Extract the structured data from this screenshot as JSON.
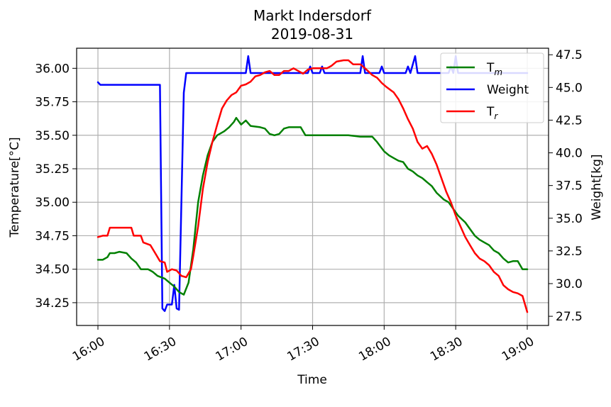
{
  "chart_data": {
    "type": "line",
    "title": "Markt Indersdorf",
    "subtitle": "2019-08-31",
    "xlabel": "Time",
    "ylabel_left": "Temperature[°C]",
    "ylabel_right": "Weight[kg]",
    "x_range": [
      "16:00",
      "19:00"
    ],
    "x_ticks": [
      "16:00",
      "16:30",
      "17:00",
      "17:30",
      "18:00",
      "18:30",
      "19:00"
    ],
    "y_left_range": [
      34.08,
      36.15
    ],
    "y_left_ticks": [
      "34.25",
      "34.50",
      "34.75",
      "35.00",
      "35.25",
      "35.50",
      "35.75",
      "36.00"
    ],
    "y_right_range": [
      26.8,
      48.0
    ],
    "y_right_ticks": [
      "27.5",
      "30.0",
      "32.5",
      "35.0",
      "37.5",
      "40.0",
      "42.5",
      "45.0",
      "47.5"
    ],
    "grid": true,
    "legend_position": "top-right",
    "series": [
      {
        "name": "T",
        "name_sub": "m",
        "axis": "left",
        "color": "#008000",
        "points": [
          [
            "16:00",
            34.57
          ],
          [
            "16:02",
            34.57
          ],
          [
            "16:04",
            34.59
          ],
          [
            "16:05",
            34.62
          ],
          [
            "16:07",
            34.62
          ],
          [
            "16:09",
            34.63
          ],
          [
            "16:12",
            34.62
          ],
          [
            "16:14",
            34.58
          ],
          [
            "16:16",
            34.55
          ],
          [
            "16:18",
            34.5
          ],
          [
            "16:21",
            34.5
          ],
          [
            "16:23",
            34.48
          ],
          [
            "16:25",
            34.45
          ],
          [
            "16:28",
            34.43
          ],
          [
            "16:30",
            34.4
          ],
          [
            "16:32",
            34.37
          ],
          [
            "16:34",
            34.33
          ],
          [
            "16:36",
            34.31
          ],
          [
            "16:38",
            34.4
          ],
          [
            "16:40",
            34.65
          ],
          [
            "16:42",
            35.0
          ],
          [
            "16:44",
            35.2
          ],
          [
            "16:46",
            35.35
          ],
          [
            "16:48",
            35.45
          ],
          [
            "16:50",
            35.5
          ],
          [
            "16:53",
            35.53
          ],
          [
            "16:55",
            35.56
          ],
          [
            "16:57",
            35.6
          ],
          [
            "16:58",
            35.63
          ],
          [
            "17:00",
            35.58
          ],
          [
            "17:02",
            35.61
          ],
          [
            "17:04",
            35.57
          ],
          [
            "17:08",
            35.56
          ],
          [
            "17:10",
            35.55
          ],
          [
            "17:12",
            35.51
          ],
          [
            "17:14",
            35.5
          ],
          [
            "17:16",
            35.51
          ],
          [
            "17:18",
            35.55
          ],
          [
            "17:20",
            35.56
          ],
          [
            "17:25",
            35.56
          ],
          [
            "17:27",
            35.5
          ],
          [
            "17:30",
            35.5
          ],
          [
            "17:40",
            35.5
          ],
          [
            "17:45",
            35.5
          ],
          [
            "17:50",
            35.49
          ],
          [
            "17:55",
            35.49
          ],
          [
            "17:57",
            35.45
          ],
          [
            "18:00",
            35.38
          ],
          [
            "18:02",
            35.35
          ],
          [
            "18:04",
            35.33
          ],
          [
            "18:06",
            35.31
          ],
          [
            "18:08",
            35.3
          ],
          [
            "18:10",
            35.25
          ],
          [
            "18:12",
            35.23
          ],
          [
            "18:14",
            35.2
          ],
          [
            "18:16",
            35.18
          ],
          [
            "18:18",
            35.15
          ],
          [
            "18:20",
            35.12
          ],
          [
            "18:22",
            35.07
          ],
          [
            "18:25",
            35.02
          ],
          [
            "18:27",
            35.0
          ],
          [
            "18:29",
            34.95
          ],
          [
            "18:31",
            34.9
          ],
          [
            "18:34",
            34.85
          ],
          [
            "18:36",
            34.8
          ],
          [
            "18:38",
            34.75
          ],
          [
            "18:40",
            34.72
          ],
          [
            "18:42",
            34.7
          ],
          [
            "18:44",
            34.68
          ],
          [
            "18:46",
            34.64
          ],
          [
            "18:48",
            34.62
          ],
          [
            "18:50",
            34.58
          ],
          [
            "18:52",
            34.55
          ],
          [
            "18:54",
            34.56
          ],
          [
            "18:56",
            34.56
          ],
          [
            "18:58",
            34.5
          ],
          [
            "19:00",
            34.5
          ]
        ]
      },
      {
        "name": "Weight",
        "axis": "right",
        "color": "#0000ff",
        "points": [
          [
            "16:00",
            45.4
          ],
          [
            "16:01",
            45.2
          ],
          [
            "16:10",
            45.2
          ],
          [
            "16:20",
            45.2
          ],
          [
            "16:26",
            45.2
          ],
          [
            "16:27",
            28.1
          ],
          [
            "16:28",
            27.9
          ],
          [
            "16:29",
            28.4
          ],
          [
            "16:31",
            28.4
          ],
          [
            "16:32",
            29.9
          ],
          [
            "16:33",
            28.1
          ],
          [
            "16:34",
            28.0
          ],
          [
            "16:36",
            44.6
          ],
          [
            "16:37",
            46.1
          ],
          [
            "16:40",
            46.1
          ],
          [
            "16:50",
            46.1
          ],
          [
            "17:00",
            46.1
          ],
          [
            "17:02",
            46.1
          ],
          [
            "17:03",
            47.4
          ],
          [
            "17:04",
            46.1
          ],
          [
            "17:10",
            46.1
          ],
          [
            "17:15",
            46.1
          ],
          [
            "17:20",
            46.1
          ],
          [
            "17:28",
            46.1
          ],
          [
            "17:29",
            46.6
          ],
          [
            "17:30",
            46.1
          ],
          [
            "17:33",
            46.1
          ],
          [
            "17:34",
            46.6
          ],
          [
            "17:35",
            46.1
          ],
          [
            "17:45",
            46.1
          ],
          [
            "17:50",
            46.1
          ],
          [
            "17:51",
            47.4
          ],
          [
            "17:52",
            46.1
          ],
          [
            "17:58",
            46.1
          ],
          [
            "17:59",
            46.6
          ],
          [
            "18:00",
            46.1
          ],
          [
            "18:09",
            46.1
          ],
          [
            "18:10",
            46.6
          ],
          [
            "18:11",
            46.1
          ],
          [
            "18:13",
            47.4
          ],
          [
            "18:14",
            46.1
          ],
          [
            "18:20",
            46.1
          ],
          [
            "18:27",
            46.1
          ],
          [
            "18:28",
            46.6
          ],
          [
            "18:29",
            46.1
          ],
          [
            "18:30",
            47.4
          ],
          [
            "18:31",
            46.1
          ],
          [
            "19:00",
            46.1
          ]
        ]
      },
      {
        "name": "T",
        "name_sub": "r",
        "axis": "left",
        "color": "#ff0000",
        "points": [
          [
            "16:00",
            34.74
          ],
          [
            "16:02",
            34.75
          ],
          [
            "16:04",
            34.75
          ],
          [
            "16:05",
            34.81
          ],
          [
            "16:10",
            34.81
          ],
          [
            "16:14",
            34.81
          ],
          [
            "16:15",
            34.75
          ],
          [
            "16:18",
            34.75
          ],
          [
            "16:19",
            34.7
          ],
          [
            "16:22",
            34.68
          ],
          [
            "16:24",
            34.62
          ],
          [
            "16:26",
            34.56
          ],
          [
            "16:28",
            34.55
          ],
          [
            "16:29",
            34.48
          ],
          [
            "16:31",
            34.5
          ],
          [
            "16:33",
            34.49
          ],
          [
            "16:35",
            34.45
          ],
          [
            "16:37",
            34.44
          ],
          [
            "16:39",
            34.5
          ],
          [
            "16:40",
            34.6
          ],
          [
            "16:42",
            34.82
          ],
          [
            "16:44",
            35.1
          ],
          [
            "16:46",
            35.3
          ],
          [
            "16:48",
            35.45
          ],
          [
            "16:50",
            35.58
          ],
          [
            "16:52",
            35.7
          ],
          [
            "16:54",
            35.76
          ],
          [
            "16:56",
            35.8
          ],
          [
            "16:58",
            35.82
          ],
          [
            "17:00",
            35.87
          ],
          [
            "17:02",
            35.88
          ],
          [
            "17:04",
            35.9
          ],
          [
            "17:06",
            35.94
          ],
          [
            "17:08",
            35.95
          ],
          [
            "17:10",
            35.97
          ],
          [
            "17:12",
            35.98
          ],
          [
            "17:14",
            35.95
          ],
          [
            "17:16",
            35.95
          ],
          [
            "17:18",
            35.98
          ],
          [
            "17:20",
            35.98
          ],
          [
            "17:22",
            36.0
          ],
          [
            "17:24",
            35.98
          ],
          [
            "17:26",
            35.96
          ],
          [
            "17:28",
            35.99
          ],
          [
            "17:30",
            36.0
          ],
          [
            "17:33",
            36.0
          ],
          [
            "17:36",
            36.0
          ],
          [
            "17:38",
            36.02
          ],
          [
            "17:40",
            36.05
          ],
          [
            "17:43",
            36.06
          ],
          [
            "17:45",
            36.06
          ],
          [
            "17:47",
            36.03
          ],
          [
            "17:50",
            36.03
          ],
          [
            "17:52",
            36.0
          ],
          [
            "17:55",
            35.95
          ],
          [
            "17:57",
            35.93
          ],
          [
            "17:59",
            35.89
          ],
          [
            "18:01",
            35.86
          ],
          [
            "18:04",
            35.82
          ],
          [
            "18:06",
            35.77
          ],
          [
            "18:08",
            35.7
          ],
          [
            "18:10",
            35.62
          ],
          [
            "18:12",
            35.55
          ],
          [
            "18:14",
            35.45
          ],
          [
            "18:16",
            35.4
          ],
          [
            "18:18",
            35.42
          ],
          [
            "18:20",
            35.36
          ],
          [
            "18:22",
            35.28
          ],
          [
            "18:24",
            35.18
          ],
          [
            "18:26",
            35.08
          ],
          [
            "18:28",
            35.0
          ],
          [
            "18:30",
            34.9
          ],
          [
            "18:32",
            34.82
          ],
          [
            "18:34",
            34.74
          ],
          [
            "18:36",
            34.68
          ],
          [
            "18:38",
            34.62
          ],
          [
            "18:40",
            34.58
          ],
          [
            "18:42",
            34.56
          ],
          [
            "18:44",
            34.53
          ],
          [
            "18:46",
            34.48
          ],
          [
            "18:48",
            34.45
          ],
          [
            "18:50",
            34.38
          ],
          [
            "18:52",
            34.35
          ],
          [
            "18:54",
            34.33
          ],
          [
            "18:56",
            34.32
          ],
          [
            "18:58",
            34.3
          ],
          [
            "19:00",
            34.18
          ]
        ]
      }
    ]
  }
}
